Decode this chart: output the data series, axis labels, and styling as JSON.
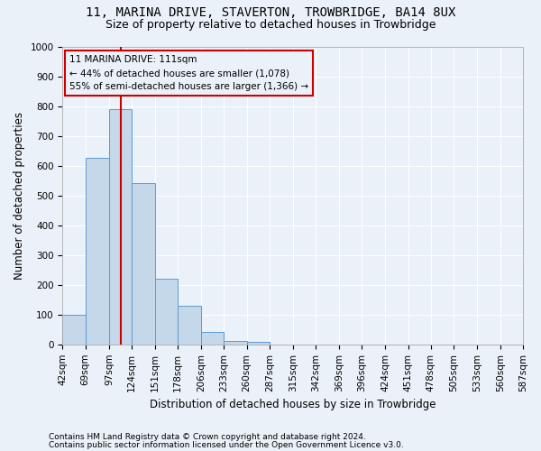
{
  "title": "11, MARINA DRIVE, STAVERTON, TROWBRIDGE, BA14 8UX",
  "subtitle": "Size of property relative to detached houses in Trowbridge",
  "xlabel": "Distribution of detached houses by size in Trowbridge",
  "ylabel": "Number of detached properties",
  "footer_line1": "Contains HM Land Registry data © Crown copyright and database right 2024.",
  "footer_line2": "Contains public sector information licensed under the Open Government Licence v3.0.",
  "property_label": "11 MARINA DRIVE: 111sqm",
  "annotation_line1": "← 44% of detached houses are smaller (1,078)",
  "annotation_line2": "55% of semi-detached houses are larger (1,366) →",
  "bar_edges": [
    42,
    69,
    97,
    124,
    151,
    178,
    206,
    233,
    260,
    287,
    315,
    342,
    369,
    396,
    424,
    451,
    478,
    505,
    533,
    560,
    587
  ],
  "bar_heights": [
    100,
    625,
    790,
    540,
    220,
    130,
    42,
    13,
    8,
    0,
    0,
    0,
    0,
    0,
    0,
    0,
    0,
    0,
    0,
    0
  ],
  "bar_color": "#c5d8ea",
  "bar_edge_color": "#5b9bd5",
  "vline_color": "#cc0000",
  "vline_x": 111,
  "ylim": [
    0,
    1000
  ],
  "yticks": [
    0,
    100,
    200,
    300,
    400,
    500,
    600,
    700,
    800,
    900,
    1000
  ],
  "background_color": "#eaf1f8",
  "grid_color": "#ffffff",
  "annotation_box_edge_color": "#cc0000",
  "title_fontsize": 10,
  "subtitle_fontsize": 9,
  "xlabel_fontsize": 8.5,
  "ylabel_fontsize": 8.5,
  "tick_fontsize": 7.5,
  "annotation_fontsize": 7.5,
  "footer_fontsize": 6.5
}
